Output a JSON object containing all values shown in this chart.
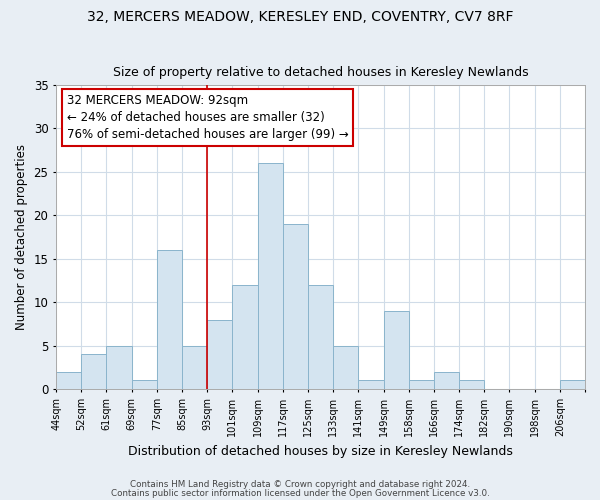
{
  "title": "32, MERCERS MEADOW, KERESLEY END, COVENTRY, CV7 8RF",
  "subtitle": "Size of property relative to detached houses in Keresley Newlands",
  "xlabel": "Distribution of detached houses by size in Keresley Newlands",
  "ylabel": "Number of detached properties",
  "bar_color": "#d4e4f0",
  "bar_edge_color": "#8ab4cc",
  "bin_labels": [
    "44sqm",
    "52sqm",
    "61sqm",
    "69sqm",
    "77sqm",
    "85sqm",
    "93sqm",
    "101sqm",
    "109sqm",
    "117sqm",
    "125sqm",
    "133sqm",
    "141sqm",
    "149sqm",
    "158sqm",
    "166sqm",
    "174sqm",
    "182sqm",
    "190sqm",
    "198sqm",
    "206sqm"
  ],
  "counts": [
    2,
    4,
    5,
    1,
    16,
    5,
    8,
    12,
    26,
    19,
    12,
    5,
    1,
    9,
    1,
    2,
    1,
    0,
    0,
    0,
    1
  ],
  "vline_bin": 6,
  "ylim": [
    0,
    35
  ],
  "yticks": [
    0,
    5,
    10,
    15,
    20,
    25,
    30,
    35
  ],
  "annotation_title": "32 MERCERS MEADOW: 92sqm",
  "annotation_line1": "← 24% of detached houses are smaller (32)",
  "annotation_line2": "76% of semi-detached houses are larger (99) →",
  "annotation_box_color": "#ffffff",
  "annotation_box_edge_color": "#cc0000",
  "vline_color": "#cc0000",
  "footer1": "Contains HM Land Registry data © Crown copyright and database right 2024.",
  "footer2": "Contains public sector information licensed under the Open Government Licence v3.0.",
  "figure_bg_color": "#e8eef4",
  "plot_bg_color": "#ffffff",
  "grid_color": "#d0dce8",
  "title_fontsize": 10,
  "subtitle_fontsize": 9
}
